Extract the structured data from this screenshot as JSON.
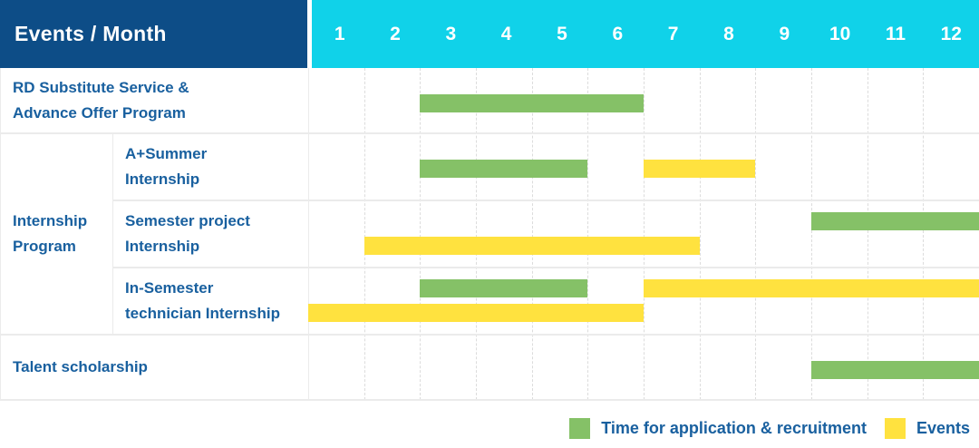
{
  "colors": {
    "header_bg": "#0d4d87",
    "months_bg": "#10d2e9",
    "header_text": "#ffffff",
    "label_text": "#19609f",
    "application_green": "#85c167",
    "event_yellow": "#ffe23f",
    "grid_line": "#ebebeb",
    "grid_dash": "#dcdcdc"
  },
  "header": {
    "corner_label": "Events / Month",
    "months": [
      "1",
      "2",
      "3",
      "4",
      "5",
      "6",
      "7",
      "8",
      "9",
      "10",
      "11",
      "12"
    ]
  },
  "legend": {
    "items": [
      {
        "kind": "application",
        "label": "Time for application & recruitment"
      },
      {
        "kind": "event",
        "label": "Events"
      }
    ]
  },
  "chart_data": {
    "type": "gantt",
    "title": "Events / Month",
    "x_axis": {
      "unit": "month",
      "ticks": [
        1,
        2,
        3,
        4,
        5,
        6,
        7,
        8,
        9,
        10,
        11,
        12
      ],
      "range": [
        1,
        12
      ]
    },
    "legend": [
      {
        "kind": "application",
        "color": "#85c167",
        "label": "Time for application & recruitment"
      },
      {
        "kind": "event",
        "color": "#ffe23f",
        "label": "Events"
      }
    ],
    "group": {
      "label": "Internship Program",
      "lines": [
        "Internship",
        "Program"
      ]
    },
    "rows": [
      {
        "label": "RD Substitute Service & Advance Offer Program",
        "label_lines": [
          "RD Substitute Service &",
          "Advance Offer Program"
        ],
        "group": false,
        "bars": [
          {
            "kind": "application",
            "start": 3,
            "end": 6,
            "lane": "center"
          }
        ]
      },
      {
        "label": "A+Summer Internship",
        "label_lines": [
          "A+Summer",
          "Internship"
        ],
        "group": true,
        "bars": [
          {
            "kind": "application",
            "start": 3,
            "end": 5,
            "lane": "center"
          },
          {
            "kind": "event",
            "start": 7,
            "end": 8,
            "lane": "center"
          }
        ]
      },
      {
        "label": "Semester project Internship",
        "label_lines": [
          "Semester project",
          "Internship"
        ],
        "group": true,
        "bars": [
          {
            "kind": "application",
            "start": 10,
            "end": 12,
            "lane": "top"
          },
          {
            "kind": "event",
            "start": 2,
            "end": 7,
            "lane": "bottom"
          }
        ]
      },
      {
        "label": "In-Semester technician Internship",
        "label_lines": [
          "In-Semester",
          "technician Internship"
        ],
        "group": true,
        "bars": [
          {
            "kind": "application",
            "start": 3,
            "end": 5,
            "lane": "top"
          },
          {
            "kind": "event",
            "start": 7,
            "end": 12,
            "lane": "top"
          },
          {
            "kind": "event",
            "start": 1,
            "end": 6,
            "lane": "bottom"
          }
        ]
      },
      {
        "label": "Talent scholarship",
        "label_lines": [
          "Talent scholarship"
        ],
        "group": false,
        "bars": [
          {
            "kind": "application",
            "start": 10,
            "end": 12,
            "lane": "center"
          }
        ]
      }
    ]
  }
}
